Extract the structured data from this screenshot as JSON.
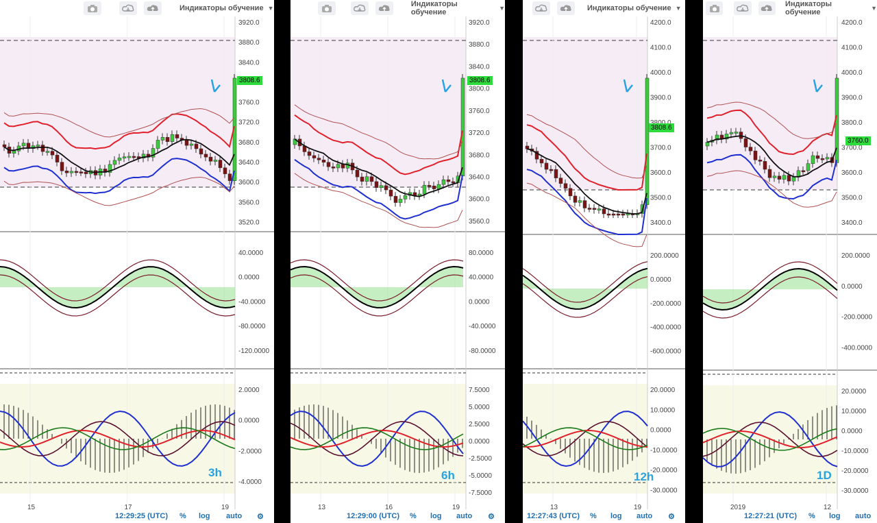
{
  "toolbar": {
    "indicator_select": "Индикаторы обучение"
  },
  "panels": [
    {
      "timeframe_label": "3h",
      "time_readout": "12:29:25 (UTC)",
      "price_tag": "3808.6",
      "price_axis": [
        "3920.0",
        "3880.0",
        "3840.0",
        "3800.0",
        "3760.0",
        "3720.0",
        "3680.0",
        "3640.0",
        "3600.0",
        "3560.0",
        "3520.0"
      ],
      "osc1_axis": [
        "40.0000",
        "0.0000",
        "-40.0000",
        "-80.0000",
        "-120.0000"
      ],
      "osc2_axis": [
        "2.0000",
        "0.0000",
        "-2.0000",
        "-4.0000"
      ],
      "date_axis": [
        "15",
        "17",
        "19"
      ],
      "options": [
        "%",
        "log",
        "auto"
      ]
    },
    {
      "timeframe_label": "6h",
      "time_readout": "12:29:00 (UTC)",
      "price_tag": "3808.6",
      "price_axis": [
        "3920.0",
        "3880.0",
        "3840.0",
        "3800.0",
        "3760.0",
        "3720.0",
        "3680.0",
        "3640.0",
        "3600.0",
        "3560.0"
      ],
      "osc1_axis": [
        "80.0000",
        "40.0000",
        "0.0000",
        "-40.0000",
        "-80.0000"
      ],
      "osc2_axis": [
        "7.5000",
        "5.0000",
        "2.5000",
        "0.0000",
        "-2.5000",
        "-5.0000",
        "-7.5000"
      ],
      "date_axis": [
        "13",
        "16",
        "19"
      ],
      "options": [
        "%",
        "log",
        "auto"
      ]
    },
    {
      "timeframe_label": "12h",
      "time_readout": "12:27:43 (UTC)",
      "price_tag": "3808.6",
      "price_axis": [
        "4200.0",
        "4100.0",
        "4000.0",
        "3900.0",
        "3800.0",
        "3700.0",
        "3600.0",
        "3500.0",
        "3400.0"
      ],
      "osc1_axis": [
        "200.0000",
        "0.0000",
        "-200.0000",
        "-400.0000",
        "-600.0000"
      ],
      "osc2_axis": [
        "20.0000",
        "10.0000",
        "0.0000",
        "-10.0000",
        "-20.0000",
        "-30.0000"
      ],
      "date_axis": [
        "13",
        "19"
      ],
      "options": [
        "%",
        "log",
        "auto"
      ]
    },
    {
      "timeframe_label": "1D",
      "time_readout": "12:27:21 (UTC)",
      "price_tag": "3760.0",
      "price_axis": [
        "4200.0",
        "4100.0",
        "4000.0",
        "3900.0",
        "3800.0",
        "3700.0",
        "3600.0",
        "3500.0",
        "3400.0"
      ],
      "osc1_axis": [
        "200.0000",
        "0.0000",
        "-200.0000",
        "-400.0000"
      ],
      "osc2_axis": [
        "20.0000",
        "10.0000",
        "0.0000",
        "-10.0000",
        "-20.0000",
        "-30.0000"
      ],
      "date_axis": [
        "2019",
        "12"
      ],
      "options": [
        "%",
        "log",
        "auto"
      ]
    }
  ],
  "colors": {
    "up_candle": "#3ec93e",
    "down_candle": "#7a1414",
    "ma_red": "#e0202a",
    "ma_blue": "#1e2fd0",
    "annotation": "#29a3e0",
    "price_tag": "#2edb3c",
    "osc_fill_green": "#9fe39a",
    "osc_fill_red": "#f08a8a"
  },
  "chart_data": [
    {
      "type": "line",
      "title": "",
      "timeframe": "3h",
      "last_price": 3808.6,
      "ylim": [
        3520,
        3920
      ],
      "x": [
        "15",
        "17",
        "19"
      ]
    },
    {
      "type": "line",
      "title": "",
      "timeframe": "6h",
      "last_price": 3808.6,
      "ylim": [
        3560,
        3920
      ],
      "x": [
        "13",
        "16",
        "19"
      ]
    },
    {
      "type": "line",
      "title": "",
      "timeframe": "12h",
      "last_price": 3808.6,
      "ylim": [
        3400,
        4200
      ],
      "x": [
        "13",
        "19"
      ]
    },
    {
      "type": "line",
      "title": "",
      "timeframe": "1D",
      "last_price": 3760.0,
      "ylim": [
        3400,
        4200
      ],
      "x": [
        "2019",
        "12"
      ]
    }
  ]
}
